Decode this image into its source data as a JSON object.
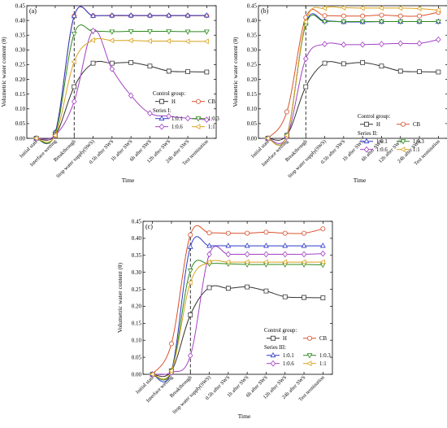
{
  "chart_data": [
    {
      "type": "line",
      "panel_label": "(a)",
      "xlabel": "Time",
      "ylabel": "Volumetric water content (θ)",
      "ylim": [
        0,
        0.45
      ],
      "yticks": [
        "0.00",
        "0.05",
        "0.10",
        "0.15",
        "0.20",
        "0.25",
        "0.30",
        "0.35",
        "0.40",
        "0.45"
      ],
      "categories": [
        "Initial state",
        "Interface wetting",
        "Breakthrough",
        "Stop water supply(SWS)",
        "0.5h after SWS",
        "1h after SWS",
        "6h after SWS",
        "12h after SWS",
        "24h after SWS",
        "Test termination"
      ],
      "breakthrough_index": 2,
      "legend": {
        "group1": "Control group:",
        "group2": "Series I:"
      },
      "series": [
        {
          "name": "H",
          "color": "#333333",
          "marker": "square",
          "values": [
            0,
            0.01,
            0.175,
            0.255,
            0.255,
            0.257,
            0.245,
            0.228,
            0.226,
            0.225
          ]
        },
        {
          "name": "CB",
          "color": "#d9512c",
          "marker": "circle",
          "values": [
            0,
            0.02,
            0.415,
            0.416,
            0.416,
            0.416,
            0.416,
            0.416,
            0.416,
            0.416
          ]
        },
        {
          "name": "1:0.1",
          "color": "#2e3ac9",
          "marker": "triangle-up",
          "values": [
            0,
            0.02,
            0.415,
            0.416,
            0.417,
            0.417,
            0.417,
            0.417,
            0.417,
            0.417
          ]
        },
        {
          "name": "1:0.3",
          "color": "#2d8a1e",
          "marker": "triangle-down",
          "values": [
            0,
            0.015,
            0.355,
            0.363,
            0.362,
            0.363,
            0.363,
            0.363,
            0.362,
            0.362
          ]
        },
        {
          "name": "1:0.6",
          "color": "#a341c4",
          "marker": "diamond",
          "values": [
            0,
            0.01,
            0.125,
            0.365,
            0.235,
            0.145,
            0.085,
            0.075,
            0.068,
            0.063
          ]
        },
        {
          "name": "1:1",
          "color": "#d9a21c",
          "marker": "triangle-left",
          "values": [
            0,
            0.01,
            0.26,
            0.333,
            0.332,
            0.332,
            0.33,
            0.33,
            0.329,
            0.329
          ]
        }
      ]
    },
    {
      "type": "line",
      "panel_label": "(b)",
      "xlabel": "Time",
      "ylabel": "Volumetric water content (θ)",
      "ylim": [
        0,
        0.45
      ],
      "yticks": [
        "0.00",
        "0.05",
        "0.10",
        "0.15",
        "0.20",
        "0.25",
        "0.30",
        "0.35",
        "0.40",
        "0.45"
      ],
      "categories": [
        "Initial state",
        "Interface wetting",
        "Breakthrough",
        "Stop water supply(SWS)",
        "0.5h after SWS",
        "1h after SWS",
        "6h after SWS",
        "12h after SWS",
        "24h after SWS",
        "Test termination"
      ],
      "breakthrough_index": 2,
      "legend": {
        "group1": "Control group:",
        "group2": "Series II:"
      },
      "series": [
        {
          "name": "H",
          "color": "#333333",
          "marker": "square",
          "values": [
            0,
            0.01,
            0.175,
            0.255,
            0.253,
            0.257,
            0.245,
            0.228,
            0.226,
            0.225
          ]
        },
        {
          "name": "CB",
          "color": "#d9512c",
          "marker": "circle",
          "values": [
            0,
            0.09,
            0.41,
            0.416,
            0.415,
            0.415,
            0.418,
            0.415,
            0.415,
            0.428
          ]
        },
        {
          "name": "1:0.1",
          "color": "#2e3ac9",
          "marker": "triangle-up",
          "values": [
            0,
            0.01,
            0.39,
            0.398,
            0.395,
            0.395,
            0.396,
            0.396,
            0.396,
            0.396
          ]
        },
        {
          "name": "1:0.3",
          "color": "#2d8a1e",
          "marker": "triangle-down",
          "values": [
            0,
            0.01,
            0.385,
            0.396,
            0.396,
            0.396,
            0.396,
            0.396,
            0.396,
            0.396
          ]
        },
        {
          "name": "1:0.6",
          "color": "#a341c4",
          "marker": "diamond",
          "values": [
            0,
            0.005,
            0.27,
            0.32,
            0.318,
            0.318,
            0.32,
            0.322,
            0.322,
            0.335
          ]
        },
        {
          "name": "1:1",
          "color": "#d9a21c",
          "marker": "triangle-left",
          "values": [
            0,
            0.01,
            0.395,
            0.442,
            0.443,
            0.442,
            0.442,
            0.442,
            0.44,
            0.435
          ]
        }
      ]
    },
    {
      "type": "line",
      "panel_label": "(c)",
      "xlabel": "Time",
      "ylabel": "Volumetric water content (θ)",
      "ylim": [
        0,
        0.45
      ],
      "yticks": [
        "0.00",
        "0.05",
        "0.10",
        "0.15",
        "0.20",
        "0.25",
        "0.30",
        "0.35",
        "0.40",
        "0.45"
      ],
      "categories": [
        "Initial state",
        "Interface wetting",
        "Breakthrough",
        "Stop water supply(SWS)",
        "0.5h after SWS",
        "1h after SWS",
        "6h after SWS",
        "12h after SWS",
        "24h after SWS",
        "Test termination"
      ],
      "breakthrough_index": 2,
      "legend": {
        "group1": "Control group:",
        "group2": "Series III:"
      },
      "series": [
        {
          "name": "H",
          "color": "#333333",
          "marker": "square",
          "values": [
            0,
            0.01,
            0.175,
            0.255,
            0.253,
            0.257,
            0.245,
            0.228,
            0.226,
            0.225
          ]
        },
        {
          "name": "CB",
          "color": "#d9512c",
          "marker": "circle",
          "values": [
            0,
            0.09,
            0.41,
            0.416,
            0.415,
            0.415,
            0.418,
            0.415,
            0.415,
            0.428
          ]
        },
        {
          "name": "1:0.1",
          "color": "#2e3ac9",
          "marker": "triangle-up",
          "values": [
            0,
            0.01,
            0.375,
            0.378,
            0.378,
            0.378,
            0.378,
            0.378,
            0.378,
            0.378
          ]
        },
        {
          "name": "1:0.3",
          "color": "#2d8a1e",
          "marker": "triangle-down",
          "values": [
            0,
            0.01,
            0.305,
            0.325,
            0.325,
            0.323,
            0.323,
            0.323,
            0.323,
            0.322
          ]
        },
        {
          "name": "1:0.6",
          "color": "#a341c4",
          "marker": "diamond",
          "values": [
            0,
            0.005,
            0.055,
            0.353,
            0.353,
            0.353,
            0.353,
            0.353,
            0.353,
            0.355
          ]
        },
        {
          "name": "1:1",
          "color": "#d9a21c",
          "marker": "triangle-left",
          "values": [
            0,
            0.01,
            0.27,
            0.33,
            0.33,
            0.33,
            0.33,
            0.33,
            0.33,
            0.33
          ]
        }
      ]
    }
  ]
}
